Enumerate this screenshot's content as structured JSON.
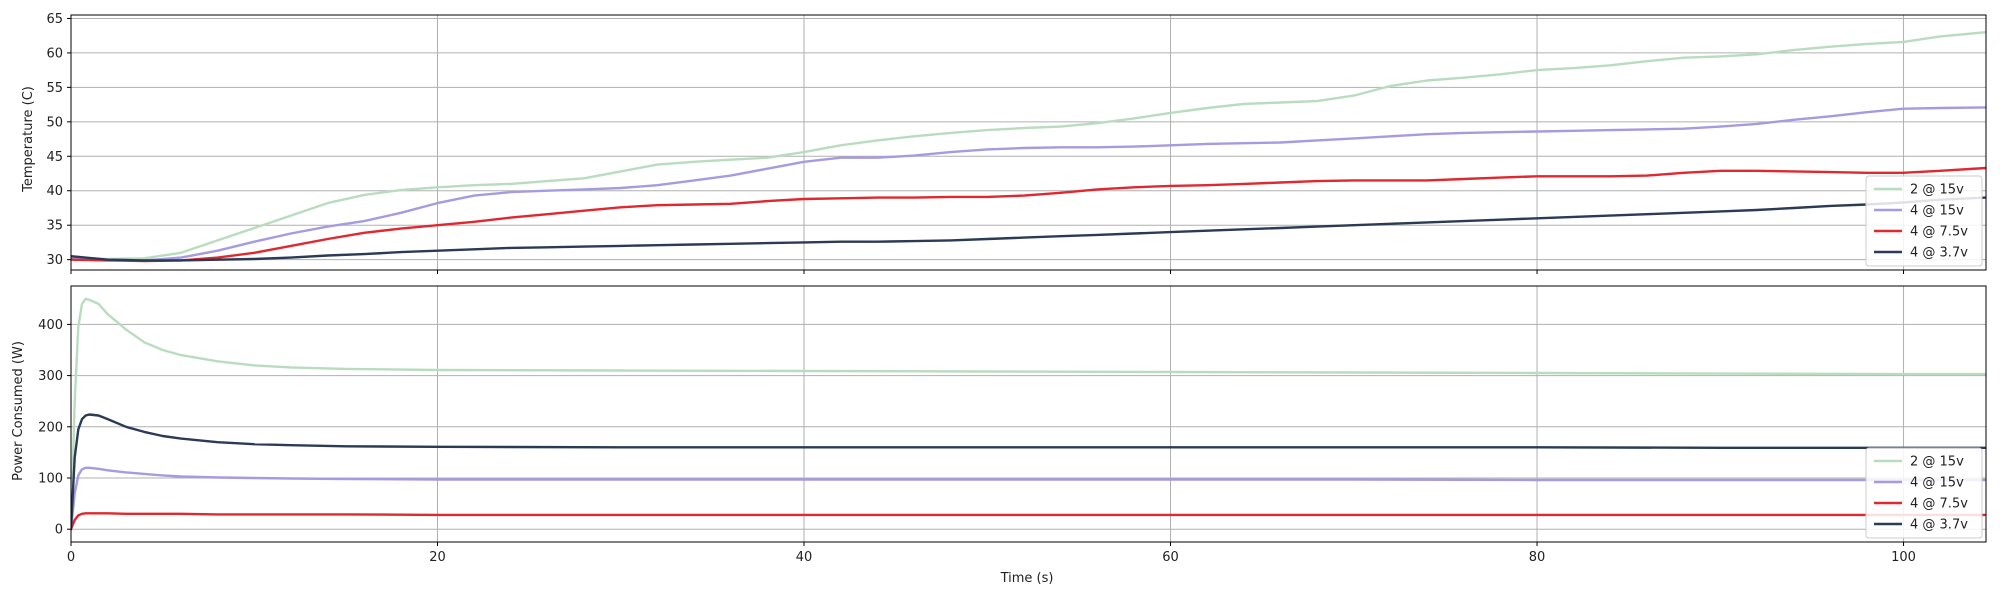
{
  "chart_data": [
    {
      "type": "line",
      "title": "",
      "xlabel": "",
      "ylabel": "Temperature (C)",
      "xlim": [
        0,
        104.5
      ],
      "ylim": [
        28.5,
        65.5
      ],
      "xticks": [
        0,
        20,
        40,
        60,
        80,
        100
      ],
      "yticks": [
        30,
        35,
        40,
        45,
        50,
        55,
        60,
        65
      ],
      "grid": true,
      "legend_position": "bottom-right",
      "series": [
        {
          "name": "2 @ 15v",
          "color": "#b9dcbf",
          "x": [
            0,
            2,
            4,
            6,
            8,
            10,
            12,
            14,
            16,
            18,
            20,
            22,
            24,
            26,
            28,
            30,
            32,
            34,
            36,
            38,
            40,
            42,
            44,
            46,
            48,
            50,
            52,
            54,
            56,
            58,
            60,
            62,
            64,
            66,
            68,
            70,
            72,
            74,
            76,
            78,
            80,
            82,
            84,
            86,
            88,
            90,
            92,
            94,
            96,
            98,
            100,
            102,
            104.5
          ],
          "values": [
            30.3,
            30.1,
            30.2,
            31.0,
            32.8,
            34.6,
            36.4,
            38.2,
            39.4,
            40.1,
            40.5,
            40.8,
            41.0,
            41.4,
            41.8,
            42.8,
            43.8,
            44.2,
            44.5,
            44.8,
            45.6,
            46.6,
            47.3,
            47.9,
            48.4,
            48.8,
            49.1,
            49.3,
            49.8,
            50.5,
            51.3,
            52.0,
            52.6,
            52.8,
            53.0,
            53.8,
            55.2,
            56.0,
            56.4,
            56.9,
            57.5,
            57.8,
            58.2,
            58.8,
            59.3,
            59.5,
            59.8,
            60.4,
            60.9,
            61.3,
            61.6,
            62.4,
            63.0
          ]
        },
        {
          "name": "4 @ 15v",
          "color": "#a59be0",
          "x": [
            0,
            2,
            4,
            6,
            8,
            10,
            12,
            14,
            16,
            18,
            20,
            22,
            24,
            26,
            28,
            30,
            32,
            34,
            36,
            38,
            40,
            42,
            44,
            46,
            48,
            50,
            52,
            54,
            56,
            58,
            60,
            62,
            64,
            66,
            68,
            70,
            72,
            74,
            76,
            78,
            80,
            82,
            84,
            86,
            88,
            90,
            92,
            94,
            96,
            98,
            100,
            102,
            104.5
          ],
          "values": [
            30.2,
            30.0,
            29.9,
            30.3,
            31.3,
            32.6,
            33.8,
            34.8,
            35.6,
            36.8,
            38.2,
            39.3,
            39.8,
            40.0,
            40.2,
            40.4,
            40.8,
            41.5,
            42.2,
            43.2,
            44.2,
            44.8,
            44.8,
            45.1,
            45.6,
            46.0,
            46.2,
            46.3,
            46.3,
            46.4,
            46.6,
            46.8,
            46.9,
            47.0,
            47.3,
            47.6,
            47.9,
            48.2,
            48.4,
            48.5,
            48.6,
            48.7,
            48.8,
            48.9,
            49.0,
            49.3,
            49.7,
            50.3,
            50.8,
            51.4,
            51.9,
            52.0,
            52.1
          ]
        },
        {
          "name": "4 @ 7.5v",
          "color": "#e0282e",
          "x": [
            0,
            2,
            4,
            6,
            8,
            10,
            12,
            14,
            16,
            18,
            20,
            22,
            24,
            26,
            28,
            30,
            32,
            34,
            36,
            38,
            40,
            42,
            44,
            46,
            48,
            50,
            52,
            54,
            56,
            58,
            60,
            62,
            64,
            66,
            68,
            70,
            72,
            74,
            76,
            78,
            80,
            82,
            84,
            86,
            88,
            90,
            92,
            94,
            96,
            98,
            100,
            102,
            104.5
          ],
          "values": [
            30.0,
            29.9,
            29.8,
            29.9,
            30.3,
            31.0,
            32.0,
            33.0,
            33.9,
            34.5,
            35.0,
            35.5,
            36.1,
            36.6,
            37.1,
            37.6,
            37.9,
            38.0,
            38.1,
            38.5,
            38.8,
            38.9,
            39.0,
            39.0,
            39.1,
            39.1,
            39.3,
            39.7,
            40.2,
            40.5,
            40.7,
            40.8,
            41.0,
            41.2,
            41.4,
            41.5,
            41.5,
            41.5,
            41.7,
            41.9,
            42.1,
            42.1,
            42.1,
            42.2,
            42.6,
            42.9,
            42.9,
            42.8,
            42.7,
            42.6,
            42.6,
            42.9,
            43.3
          ]
        },
        {
          "name": "4 @ 3.7v",
          "color": "#2b3a55",
          "x": [
            0,
            2,
            4,
            6,
            8,
            10,
            12,
            14,
            16,
            18,
            20,
            22,
            24,
            26,
            28,
            30,
            32,
            34,
            36,
            38,
            40,
            42,
            44,
            46,
            48,
            50,
            52,
            54,
            56,
            58,
            60,
            62,
            64,
            66,
            68,
            70,
            72,
            74,
            76,
            78,
            80,
            82,
            84,
            86,
            88,
            90,
            92,
            94,
            96,
            98,
            100,
            102,
            104.5
          ],
          "values": [
            30.5,
            30.0,
            29.9,
            29.9,
            30.0,
            30.1,
            30.3,
            30.6,
            30.8,
            31.1,
            31.3,
            31.5,
            31.7,
            31.8,
            31.9,
            32.0,
            32.1,
            32.2,
            32.3,
            32.4,
            32.5,
            32.6,
            32.6,
            32.7,
            32.8,
            33.0,
            33.2,
            33.4,
            33.6,
            33.8,
            34.0,
            34.2,
            34.4,
            34.6,
            34.8,
            35.0,
            35.2,
            35.4,
            35.6,
            35.8,
            36.0,
            36.2,
            36.4,
            36.6,
            36.8,
            37.0,
            37.2,
            37.5,
            37.8,
            38.0,
            38.3,
            38.7,
            39.0
          ]
        }
      ]
    },
    {
      "type": "line",
      "title": "",
      "xlabel": "Time (s)",
      "ylabel": "Power Consumed (W)",
      "xlim": [
        0,
        104.5
      ],
      "ylim": [
        -25,
        475
      ],
      "xticks": [
        0,
        20,
        40,
        60,
        80,
        100
      ],
      "yticks": [
        0,
        100,
        200,
        300,
        400
      ],
      "grid": true,
      "legend_position": "bottom-right",
      "series": [
        {
          "name": "2 @ 15v",
          "color": "#b9dcbf",
          "x": [
            0,
            0.2,
            0.4,
            0.6,
            0.8,
            1.0,
            1.5,
            2,
            3,
            4,
            5,
            6,
            8,
            10,
            12,
            15,
            20,
            30,
            40,
            50,
            60,
            70,
            80,
            90,
            100,
            104.5
          ],
          "values": [
            0,
            250,
            395,
            440,
            450,
            448,
            440,
            420,
            390,
            365,
            350,
            340,
            328,
            320,
            316,
            313,
            311,
            310,
            309,
            308,
            307,
            306,
            305,
            304,
            303,
            303
          ]
        },
        {
          "name": "4 @ 15v",
          "color": "#a59be0",
          "x": [
            0,
            0.2,
            0.4,
            0.6,
            0.8,
            1.0,
            1.5,
            2,
            3,
            4,
            5,
            6,
            8,
            10,
            12,
            15,
            20,
            30,
            40,
            50,
            60,
            70,
            80,
            90,
            100,
            104.5
          ],
          "values": [
            0,
            70,
            105,
            117,
            120,
            120,
            118,
            115,
            111,
            108,
            105,
            103,
            101,
            100,
            99,
            98,
            97,
            97,
            97,
            97,
            97,
            97,
            96,
            96,
            96,
            96
          ]
        },
        {
          "name": "4 @ 7.5v",
          "color": "#e0282e",
          "x": [
            0,
            0.2,
            0.4,
            0.6,
            0.8,
            1.0,
            1.5,
            2,
            3,
            4,
            5,
            6,
            8,
            10,
            12,
            15,
            20,
            30,
            40,
            50,
            60,
            70,
            80,
            90,
            100,
            104.5
          ],
          "values": [
            0,
            18,
            27,
            30,
            31,
            31,
            31,
            31,
            30,
            30,
            30,
            30,
            29,
            29,
            29,
            29,
            28,
            28,
            28,
            28,
            28,
            28,
            28,
            28,
            28,
            28
          ]
        },
        {
          "name": "4 @ 3.7v",
          "color": "#2b3a55",
          "x": [
            0,
            0.2,
            0.4,
            0.6,
            0.8,
            1.0,
            1.5,
            2,
            3,
            4,
            5,
            6,
            8,
            10,
            12,
            15,
            20,
            30,
            40,
            50,
            60,
            70,
            80,
            90,
            100,
            104.5
          ],
          "values": [
            0,
            140,
            195,
            215,
            222,
            224,
            222,
            215,
            200,
            190,
            182,
            177,
            170,
            166,
            164,
            162,
            161,
            160,
            160,
            160,
            160,
            160,
            160,
            159,
            159,
            159
          ]
        }
      ]
    }
  ]
}
